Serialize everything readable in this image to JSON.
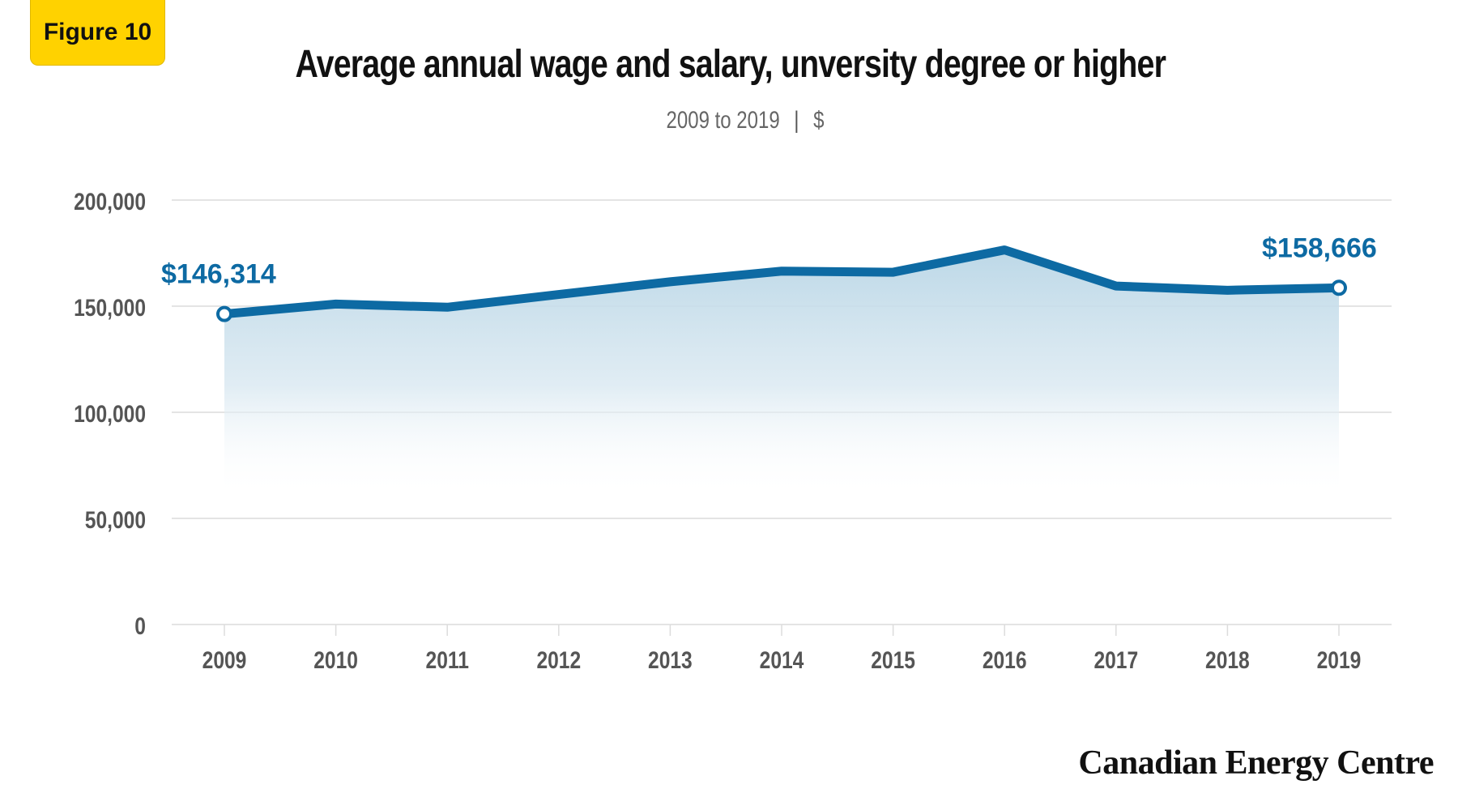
{
  "badge": {
    "label": "Figure 10"
  },
  "header": {
    "title": "Average annual wage and salary, unversity degree or higher",
    "subtitle_range": "2009 to 2019",
    "subtitle_sep": "|",
    "subtitle_unit": "$"
  },
  "footer": {
    "brand": "Canadian Energy Centre"
  },
  "colors": {
    "line": "#0d6aa3",
    "area_top": "#b9d6e6",
    "grid": "#dcdcdc",
    "tick_text": "#555555",
    "badge": "#ffd200"
  },
  "chart_data": {
    "type": "area",
    "title": "Average annual wage and salary, unversity degree or higher",
    "subtitle": "2009 to 2019 | $",
    "x": [
      "2009",
      "2010",
      "2011",
      "2012",
      "2013",
      "2014",
      "2015",
      "2016",
      "2017",
      "2018",
      "2019"
    ],
    "series": [
      {
        "values": [
          146314,
          151000,
          149500,
          155500,
          161500,
          166500,
          166000,
          176500,
          159500,
          157500,
          158666
        ]
      }
    ],
    "ylim": [
      0,
      200000
    ],
    "yticks": [
      0,
      50000,
      100000,
      150000,
      200000
    ],
    "ytick_labels": [
      "0",
      "50,000",
      "100,000",
      "150,000",
      "200,000"
    ],
    "grid": true,
    "annotations": [
      {
        "index": 0,
        "text": "$146,314"
      },
      {
        "index": 10,
        "text": "$158,666"
      }
    ]
  }
}
